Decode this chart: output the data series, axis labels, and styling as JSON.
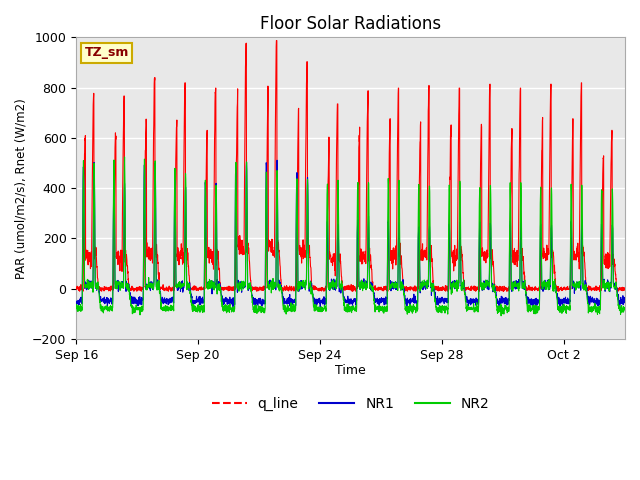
{
  "title": "Floor Solar Radiations",
  "xlabel": "Time",
  "ylabel": "PAR (umol/m2/s), Rnet (W/m2)",
  "ylim": [
    -200,
    1000
  ],
  "yticks": [
    -200,
    0,
    200,
    400,
    600,
    800,
    1000
  ],
  "fig_bg_color": "#ffffff",
  "plot_bg_color": "#e8e8e8",
  "tag_label": "TZ_sm",
  "tag_bg": "#ffffcc",
  "tag_border": "#ccaa00",
  "num_days": 18,
  "xtick_positions": [
    0,
    4,
    8,
    12,
    16
  ],
  "xtick_labels": [
    "Sep 16",
    "Sep 20",
    "Sep 24",
    "Sep 28",
    "Oct 2"
  ],
  "q_color": "#ff0000",
  "nr1_color": "#0000cc",
  "nr2_color": "#00cc00",
  "q_day_amps": [
    740,
    730,
    800,
    780,
    760,
    930,
    940,
    860,
    700,
    750,
    760,
    770,
    760,
    775,
    760,
    775,
    780,
    600
  ],
  "nr1_amps": [
    500,
    420,
    510,
    410,
    420,
    510,
    500,
    450,
    270,
    280,
    270,
    250,
    260,
    265,
    260,
    255,
    265,
    250
  ],
  "nr2_amps": [
    500,
    500,
    510,
    460,
    420,
    500,
    480,
    430,
    420,
    430,
    430,
    420,
    420,
    420,
    410,
    415,
    415,
    400
  ]
}
